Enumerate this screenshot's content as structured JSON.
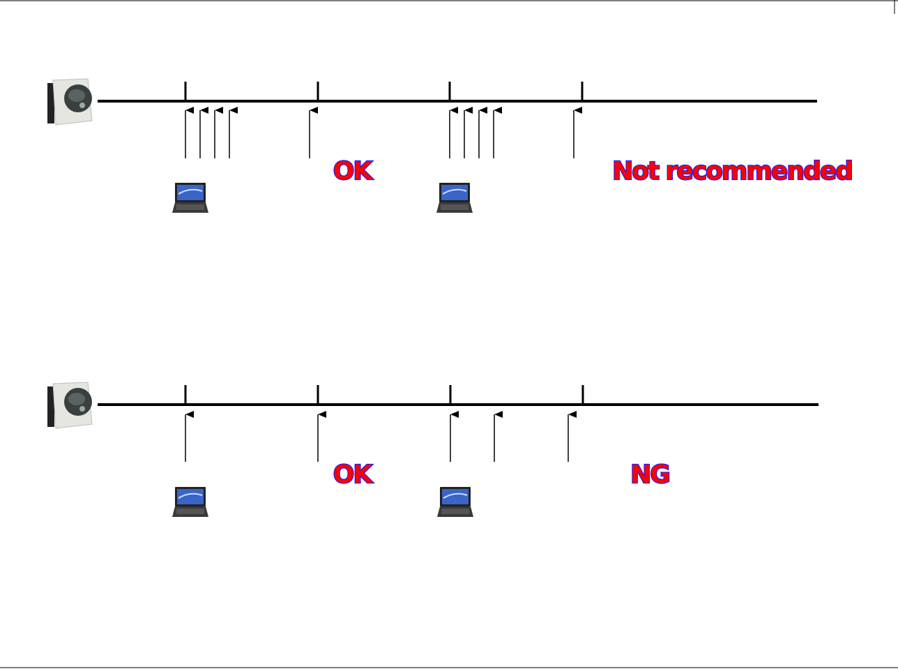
{
  "colors": {
    "label_fill": "#ff0000",
    "label_outline": "#1a1aff",
    "line": "#000000"
  },
  "diagrams": [
    {
      "name": "scenario-1",
      "labels": [
        "OK",
        "Not recommended"
      ],
      "devices": [
        "camera-icon",
        "laptop-icon",
        "laptop-icon"
      ]
    },
    {
      "name": "scenario-2",
      "labels": [
        "OK",
        "NG"
      ],
      "devices": [
        "camera-icon",
        "laptop-icon",
        "laptop-icon"
      ]
    }
  ]
}
